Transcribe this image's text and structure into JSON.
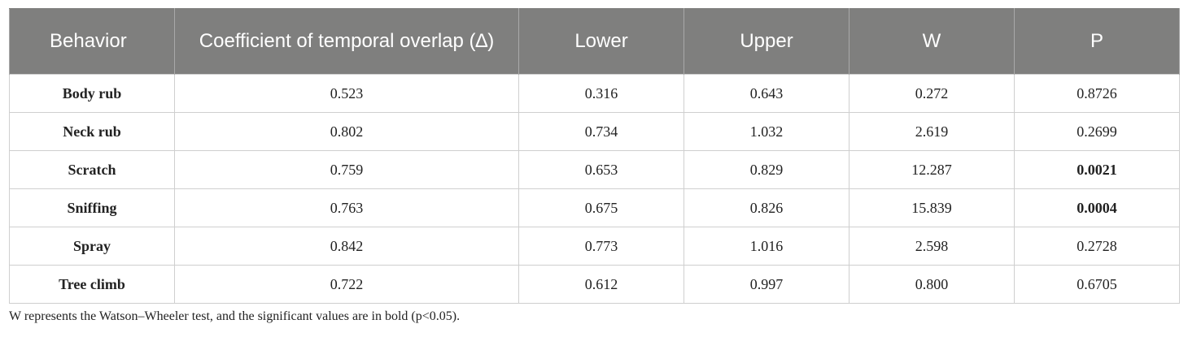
{
  "table": {
    "headers": [
      "Behavior",
      "Coefficient of temporal overlap (∆)",
      "Lower",
      "Upper",
      "W",
      "P"
    ],
    "rows": [
      {
        "behavior": "Body rub",
        "coef": "0.523",
        "lower": "0.316",
        "upper": "0.643",
        "w": "0.272",
        "p": "0.8726",
        "p_bold": false
      },
      {
        "behavior": "Neck rub",
        "coef": "0.802",
        "lower": "0.734",
        "upper": "1.032",
        "w": "2.619",
        "p": "0.2699",
        "p_bold": false
      },
      {
        "behavior": "Scratch",
        "coef": "0.759",
        "lower": "0.653",
        "upper": "0.829",
        "w": "12.287",
        "p": "0.0021",
        "p_bold": true
      },
      {
        "behavior": "Sniffing",
        "coef": "0.763",
        "lower": "0.675",
        "upper": "0.826",
        "w": "15.839",
        "p": "0.0004",
        "p_bold": true
      },
      {
        "behavior": "Spray",
        "coef": "0.842",
        "lower": "0.773",
        "upper": "1.016",
        "w": "2.598",
        "p": "0.2728",
        "p_bold": false
      },
      {
        "behavior": "Tree climb",
        "coef": "0.722",
        "lower": "0.612",
        "upper": "0.997",
        "w": "0.800",
        "p": "0.6705",
        "p_bold": false
      }
    ]
  },
  "footnote": "W represents the Watson–Wheeler test, and the significant values are in bold (p<0.05).",
  "colors": {
    "header_bg": "#7f7f7e",
    "header_text": "#ffffff",
    "border": "#cfcfcf"
  }
}
